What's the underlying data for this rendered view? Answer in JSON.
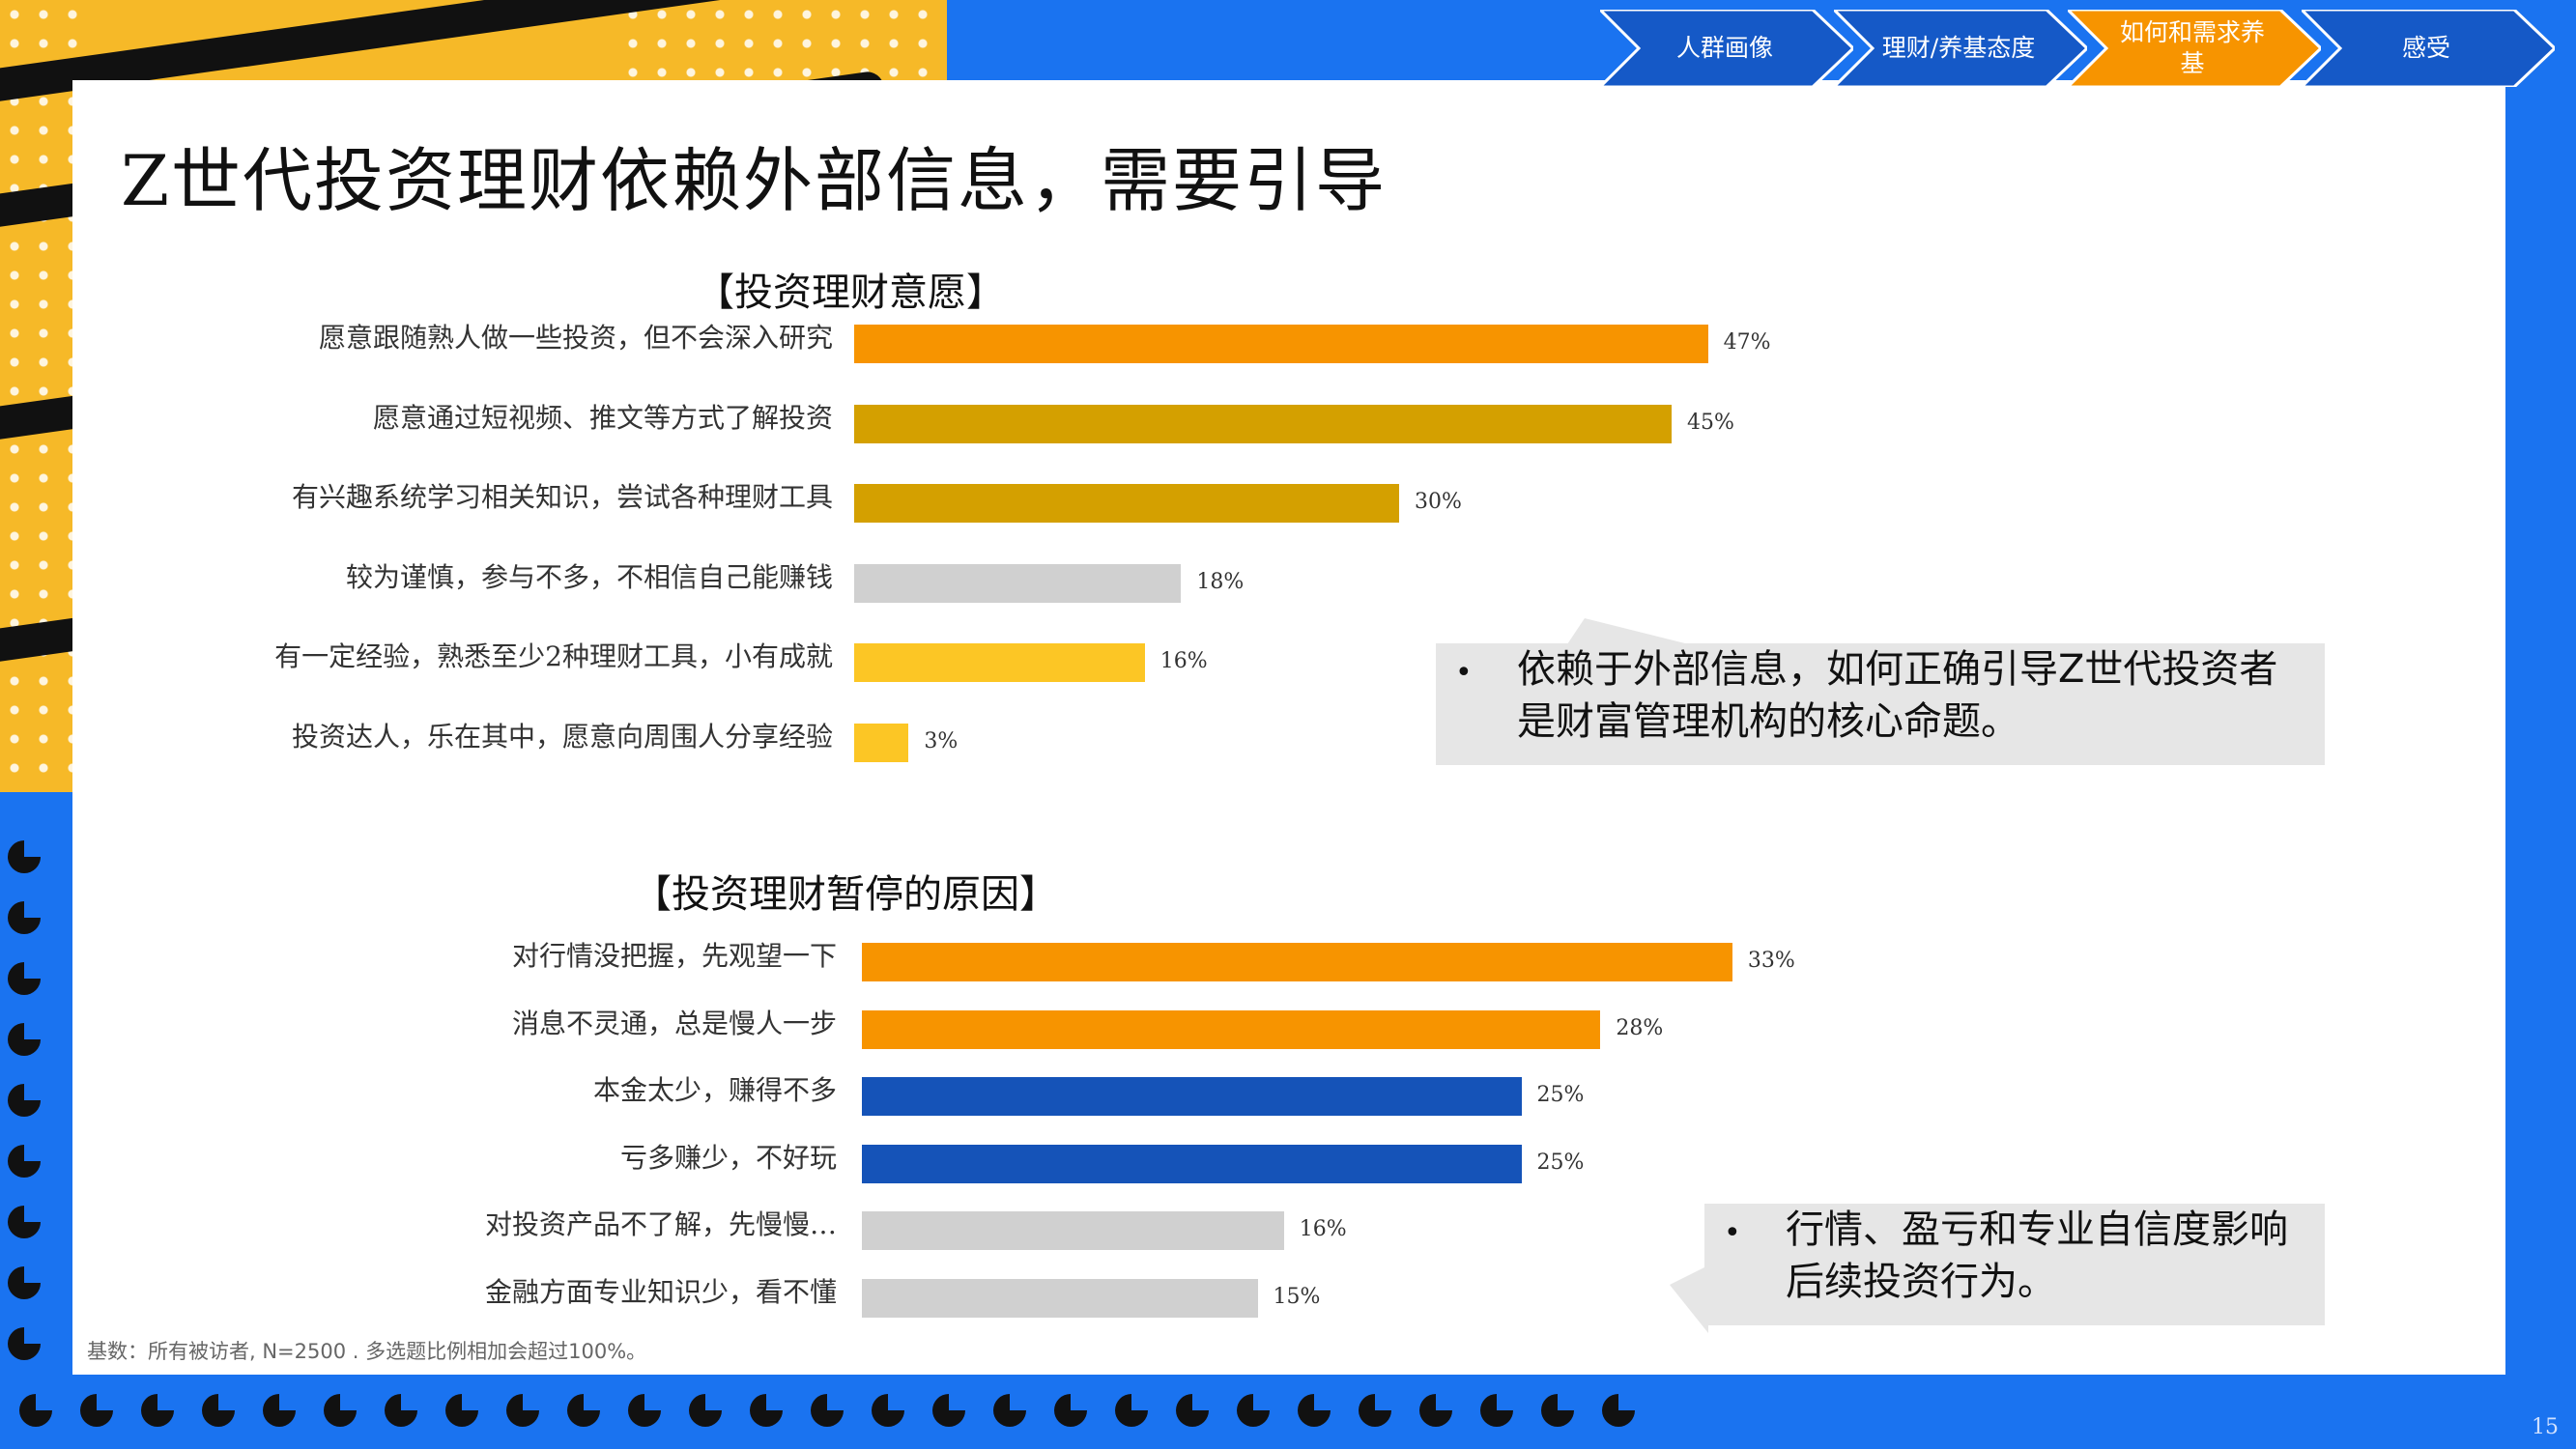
{
  "nav": {
    "items": [
      {
        "label": "人群画像",
        "color": "#1559c7"
      },
      {
        "label": "理财/养基态度",
        "color": "#1559c7"
      },
      {
        "label": "如何和需求养基",
        "color": "#f79400"
      },
      {
        "label": "感受",
        "color": "#1559c7"
      }
    ]
  },
  "title": "Z世代投资理财依赖外部信息，需要引导",
  "chart_data": [
    {
      "type": "bar",
      "orientation": "horizontal",
      "title": "【投资理财意愿】",
      "categories": [
        "愿意跟随熟人做一些投资，但不会深入研究",
        "愿意通过短视频、推文等方式了解投资",
        "有兴趣系统学习相关知识，尝试各种理财工具",
        "较为谨慎，参与不多，不相信自己能赚钱",
        "有一定经验，熟悉至少2种理财工具，小有成就",
        "投资达人，乐在其中，愿意向周围人分享经验"
      ],
      "values": [
        47,
        45,
        30,
        18,
        16,
        3
      ],
      "value_labels": [
        "47%",
        "45%",
        "30%",
        "18%",
        "16%",
        "3%"
      ],
      "colors": [
        "#f79400",
        "#d4a000",
        "#d4a000",
        "#d0d0d0",
        "#fcc625",
        "#fcc625"
      ],
      "xlim": [
        0,
        100
      ]
    },
    {
      "type": "bar",
      "orientation": "horizontal",
      "title": "【投资理财暂停的原因】",
      "categories": [
        "对行情没把握，先观望一下",
        "消息不灵通，总是慢人一步",
        "本金太少，赚得不多",
        "亏多赚少，不好玩",
        "对投资产品不了解，先慢慢…",
        "金融方面专业知识少，看不懂"
      ],
      "values": [
        33,
        28,
        25,
        25,
        16,
        15
      ],
      "value_labels": [
        "33%",
        "28%",
        "25%",
        "25%",
        "16%",
        "15%"
      ],
      "colors": [
        "#f79400",
        "#f79400",
        "#1553b8",
        "#1553b8",
        "#d0d0d0",
        "#d0d0d0"
      ],
      "xlim": [
        0,
        65
      ]
    }
  ],
  "callouts": [
    {
      "bullet": "•",
      "text": "依赖于外部信息，如何正确引导Z世代投资者是财富管理机构的核心命题。"
    },
    {
      "bullet": "•",
      "text": "行情、盈亏和专业自信度影响后续投资行为。"
    }
  ],
  "note": "基数：所有被访者, N=2500 . 多选题比例相加会超过100%。",
  "page_number": "15"
}
